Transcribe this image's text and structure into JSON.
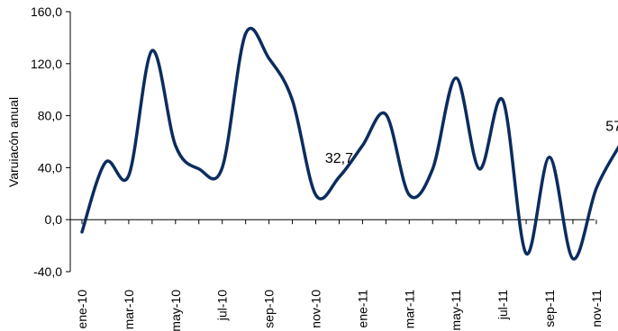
{
  "chart_data": {
    "type": "line",
    "title": "",
    "xlabel": "",
    "ylabel": "Varuiacón anual",
    "ylim": [
      -40,
      160
    ],
    "yticks": [
      -40,
      0,
      40,
      80,
      120,
      160
    ],
    "ytick_labels": [
      "-40,0",
      "0,0",
      "40,0",
      "80,0",
      "120,0",
      "160,0"
    ],
    "grid": false,
    "legend": "none",
    "x_tick_labels": [
      "ene-10",
      "mar-10",
      "may-10",
      "jul-10",
      "sep-10",
      "nov-10",
      "ene-11",
      "mar-11",
      "may-11",
      "jul-11",
      "sep-11",
      "nov-11"
    ],
    "categories": [
      "ene-10",
      "feb-10",
      "mar-10",
      "abr-10",
      "may-10",
      "jun-10",
      "jul-10",
      "ago-10",
      "sep-10",
      "oct-10",
      "nov-10",
      "dic-10",
      "ene-11",
      "feb-11",
      "mar-11",
      "abr-11",
      "may-11",
      "jun-11",
      "jul-11",
      "ago-11",
      "sep-11",
      "oct-11",
      "nov-11",
      "dic-11"
    ],
    "series": [
      {
        "values": [
          -9.5,
          44,
          34,
          130,
          57,
          39,
          40,
          143,
          124,
          92,
          19,
          32.7,
          57,
          81,
          19,
          39,
          109,
          39,
          92,
          -26,
          48,
          -30,
          24,
          57.2
        ],
        "color": "#0b2c5e"
      }
    ],
    "annotations": [
      {
        "index": 11,
        "text": "32,7"
      },
      {
        "index": 23,
        "text": "57,2"
      }
    ]
  }
}
